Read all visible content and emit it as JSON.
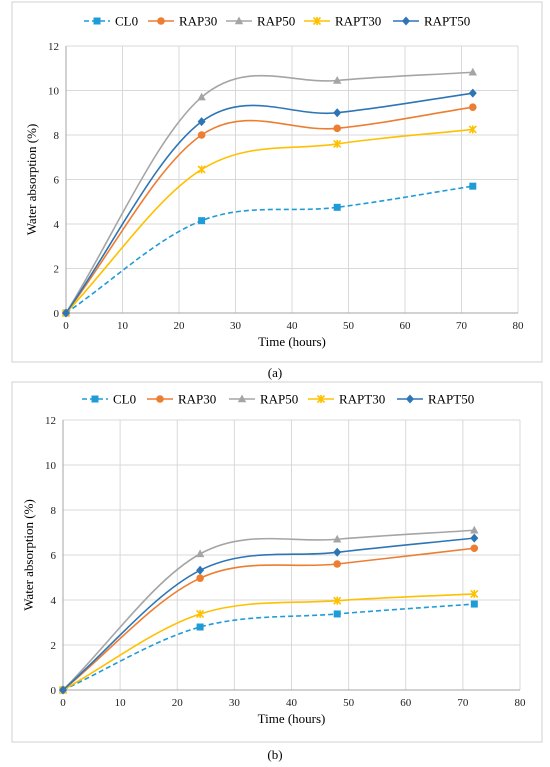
{
  "chart_data": [
    {
      "type": "line",
      "panel_label": "(a)",
      "xlabel": "Time (hours)",
      "ylabel": "Water absorption (%)",
      "xlim": [
        0,
        80
      ],
      "ylim": [
        0,
        12
      ],
      "xticks": [
        0,
        10,
        20,
        30,
        40,
        50,
        60,
        70,
        80
      ],
      "yticks": [
        0,
        2,
        4,
        6,
        8,
        10,
        12
      ],
      "grid": true,
      "legend_position": "top",
      "x": [
        0,
        24,
        48,
        72
      ],
      "series": [
        {
          "name": "CL0",
          "values": [
            0,
            4.15,
            4.75,
            5.7
          ],
          "color": "#1f9bd8",
          "marker": "square",
          "dashed": true
        },
        {
          "name": "RAP30",
          "values": [
            0,
            8.0,
            8.3,
            9.25
          ],
          "color": "#ed7d31",
          "marker": "circle",
          "dashed": false
        },
        {
          "name": "RAP50",
          "values": [
            0,
            9.7,
            10.45,
            10.82
          ],
          "color": "#a5a5a5",
          "marker": "triangle",
          "dashed": false
        },
        {
          "name": "RAPT30",
          "values": [
            0,
            6.45,
            7.6,
            8.25
          ],
          "color": "#ffc000",
          "marker": "x",
          "dashed": false
        },
        {
          "name": "RAPT50",
          "values": [
            0,
            8.6,
            9.0,
            9.88
          ],
          "color": "#2e75b6",
          "marker": "diamond",
          "dashed": false
        }
      ]
    },
    {
      "type": "line",
      "panel_label": "(b)",
      "xlabel": "Time (hours)",
      "ylabel": "Water absorption (%)",
      "xlim": [
        0,
        80
      ],
      "ylim": [
        0,
        12
      ],
      "xticks": [
        0,
        10,
        20,
        30,
        40,
        50,
        60,
        70,
        80
      ],
      "yticks": [
        0,
        2,
        4,
        6,
        8,
        10,
        12
      ],
      "grid": true,
      "legend_position": "top",
      "x": [
        0,
        24,
        48,
        72
      ],
      "series": [
        {
          "name": "CL0",
          "values": [
            0,
            2.8,
            3.38,
            3.82
          ],
          "color": "#1f9bd8",
          "marker": "square",
          "dashed": true
        },
        {
          "name": "RAP30",
          "values": [
            0,
            4.97,
            5.6,
            6.3
          ],
          "color": "#ed7d31",
          "marker": "circle",
          "dashed": false
        },
        {
          "name": "RAP50",
          "values": [
            0,
            6.05,
            6.7,
            7.1
          ],
          "color": "#a5a5a5",
          "marker": "triangle",
          "dashed": false
        },
        {
          "name": "RAPT30",
          "values": [
            0,
            3.38,
            3.97,
            4.27
          ],
          "color": "#ffc000",
          "marker": "x",
          "dashed": false
        },
        {
          "name": "RAPT50",
          "values": [
            0,
            5.32,
            6.12,
            6.75
          ],
          "color": "#2e75b6",
          "marker": "diamond",
          "dashed": false
        }
      ]
    }
  ]
}
